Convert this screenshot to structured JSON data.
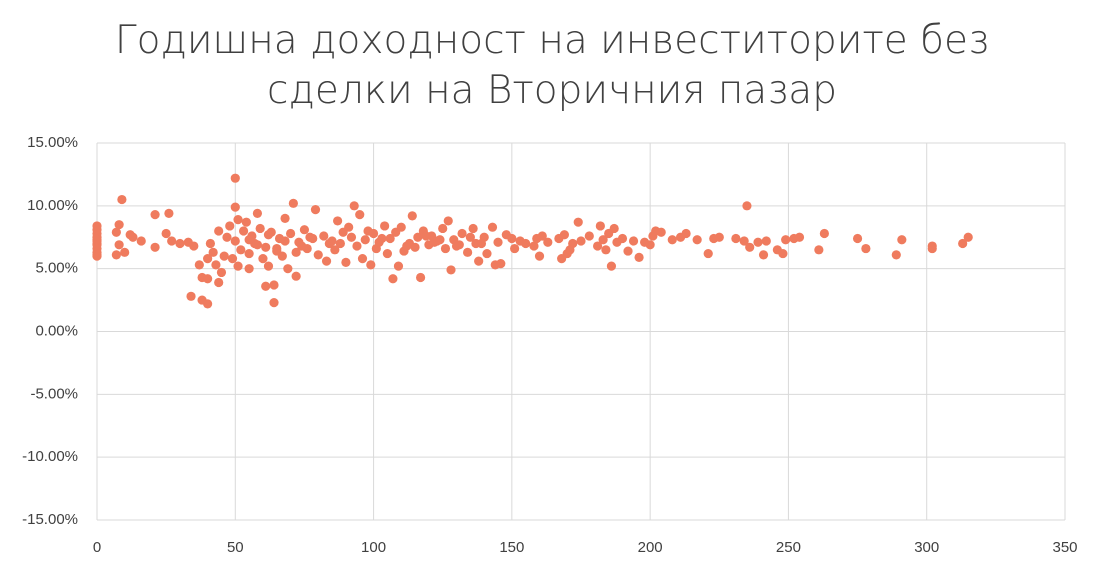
{
  "chart_data": {
    "type": "scatter",
    "title": "Годишна доходност на инвеститорите без сделки на Вторичния пазар",
    "color": "#ef7b5e",
    "grid": true,
    "xlim": [
      0,
      350
    ],
    "xticks": [
      0,
      50,
      100,
      150,
      200,
      250,
      300,
      350
    ],
    "ylim": [
      -15,
      15
    ],
    "yticks": [
      {
        "value": -15,
        "label": "-15.00%"
      },
      {
        "value": -10,
        "label": "-10.00%"
      },
      {
        "value": -5,
        "label": "-5.00%"
      },
      {
        "value": 0,
        "label": "0.00%"
      },
      {
        "value": 5,
        "label": "5.00%"
      },
      {
        "value": 10,
        "label": "10.00%"
      },
      {
        "value": 15,
        "label": "15.00%"
      }
    ],
    "x": [
      0,
      0,
      0,
      0,
      0,
      0,
      0,
      0,
      0,
      0,
      0,
      0,
      7,
      7,
      8,
      8,
      9,
      10,
      12,
      13,
      16,
      21,
      21,
      25,
      26,
      27,
      30,
      33,
      34,
      35,
      37,
      38,
      38,
      40,
      40,
      40,
      41,
      42,
      43,
      44,
      44,
      45,
      46,
      47,
      48,
      49,
      50,
      50,
      50,
      51,
      51,
      52,
      53,
      54,
      55,
      55,
      56,
      57,
      58,
      59,
      60,
      61,
      61,
      62,
      63,
      64,
      64,
      65,
      66,
      67,
      68,
      69,
      70,
      71,
      72,
      72,
      73,
      75,
      76,
      78,
      79,
      80,
      82,
      83,
      85,
      86,
      87,
      88,
      90,
      91,
      92,
      93,
      94,
      95,
      96,
      97,
      98,
      99,
      100,
      101,
      102,
      104,
      105,
      106,
      107,
      108,
      109,
      110,
      111,
      113,
      114,
      115,
      116,
      117,
      118,
      120,
      121,
      123,
      125,
      126,
      127,
      128,
      129,
      130,
      132,
      134,
      136,
      137,
      138,
      140,
      141,
      143,
      144,
      145,
      146,
      148,
      150,
      151,
      153,
      155,
      158,
      159,
      160,
      161,
      163,
      167,
      168,
      169,
      170,
      171,
      172,
      174,
      175,
      178,
      181,
      182,
      183,
      184,
      185,
      186,
      187,
      188,
      190,
      192,
      194,
      196,
      198,
      200,
      201,
      202,
      204,
      208,
      211,
      213,
      217,
      221,
      223,
      225,
      231,
      234,
      235,
      236,
      239,
      241,
      242,
      246,
      248,
      249,
      252,
      254,
      261,
      263,
      275,
      278,
      289,
      291,
      302,
      302,
      313,
      315,
      55,
      58,
      62,
      65,
      68,
      74,
      77,
      84,
      89,
      103,
      112,
      119,
      122,
      124,
      131,
      135,
      139
    ],
    "values": [
      6.0,
      6.3,
      6.6,
      6.9,
      7.2,
      7.5,
      7.8,
      8.1,
      8.4,
      6.1,
      7.0,
      7.3,
      6.1,
      7.9,
      8.5,
      6.9,
      10.5,
      6.3,
      7.7,
      7.5,
      7.2,
      9.3,
      6.7,
      7.8,
      9.4,
      7.2,
      7.0,
      7.1,
      2.8,
      6.8,
      5.3,
      2.5,
      4.3,
      2.2,
      4.2,
      5.8,
      7.0,
      6.3,
      5.3,
      3.9,
      8.0,
      4.7,
      6.0,
      7.5,
      8.4,
      5.8,
      12.2,
      9.9,
      7.2,
      8.9,
      5.2,
      6.5,
      8.0,
      8.7,
      6.2,
      5.0,
      7.6,
      7.0,
      9.4,
      8.2,
      5.8,
      6.7,
      3.6,
      5.2,
      7.9,
      3.7,
      2.3,
      6.4,
      7.4,
      6.0,
      9.0,
      5.0,
      7.8,
      10.2,
      6.3,
      4.4,
      7.1,
      8.1,
      6.6,
      7.4,
      9.7,
      6.1,
      7.6,
      5.6,
      7.2,
      6.5,
      8.8,
      7.0,
      5.5,
      8.3,
      7.5,
      10.0,
      6.8,
      9.3,
      5.8,
      7.3,
      8.0,
      5.3,
      7.8,
      6.6,
      7.1,
      8.4,
      6.2,
      7.4,
      4.2,
      7.9,
      5.2,
      8.3,
      6.4,
      7.0,
      9.2,
      6.7,
      7.5,
      4.3,
      8.0,
      6.9,
      7.6,
      7.2,
      8.2,
      6.6,
      8.8,
      4.9,
      7.3,
      6.8,
      7.8,
      6.3,
      8.2,
      7.0,
      5.6,
      7.5,
      6.2,
      8.3,
      5.3,
      7.1,
      5.4,
      7.7,
      7.4,
      6.6,
      7.2,
      7.0,
      6.8,
      7.4,
      6.0,
      7.6,
      7.1,
      7.4,
      5.8,
      7.7,
      6.2,
      6.5,
      7.0,
      8.7,
      7.2,
      7.6,
      6.8,
      8.4,
      7.3,
      6.5,
      7.8,
      5.2,
      8.2,
      7.1,
      7.4,
      6.4,
      7.2,
      5.9,
      7.1,
      6.9,
      7.6,
      8.0,
      7.9,
      7.3,
      7.5,
      7.8,
      7.3,
      6.2,
      7.4,
      7.5,
      7.4,
      7.2,
      10.0,
      6.7,
      7.1,
      6.1,
      7.2,
      6.5,
      6.2,
      7.3,
      7.4,
      7.5,
      6.5,
      7.8,
      7.4,
      6.6,
      6.1,
      7.3,
      6.8,
      6.6,
      7.0,
      7.5,
      7.3,
      6.9,
      7.7,
      6.6,
      7.2,
      6.8,
      7.5,
      7.0,
      7.9,
      7.4,
      6.8,
      7.6,
      7.1,
      7.3,
      6.9,
      7.5,
      7.0
    ]
  }
}
